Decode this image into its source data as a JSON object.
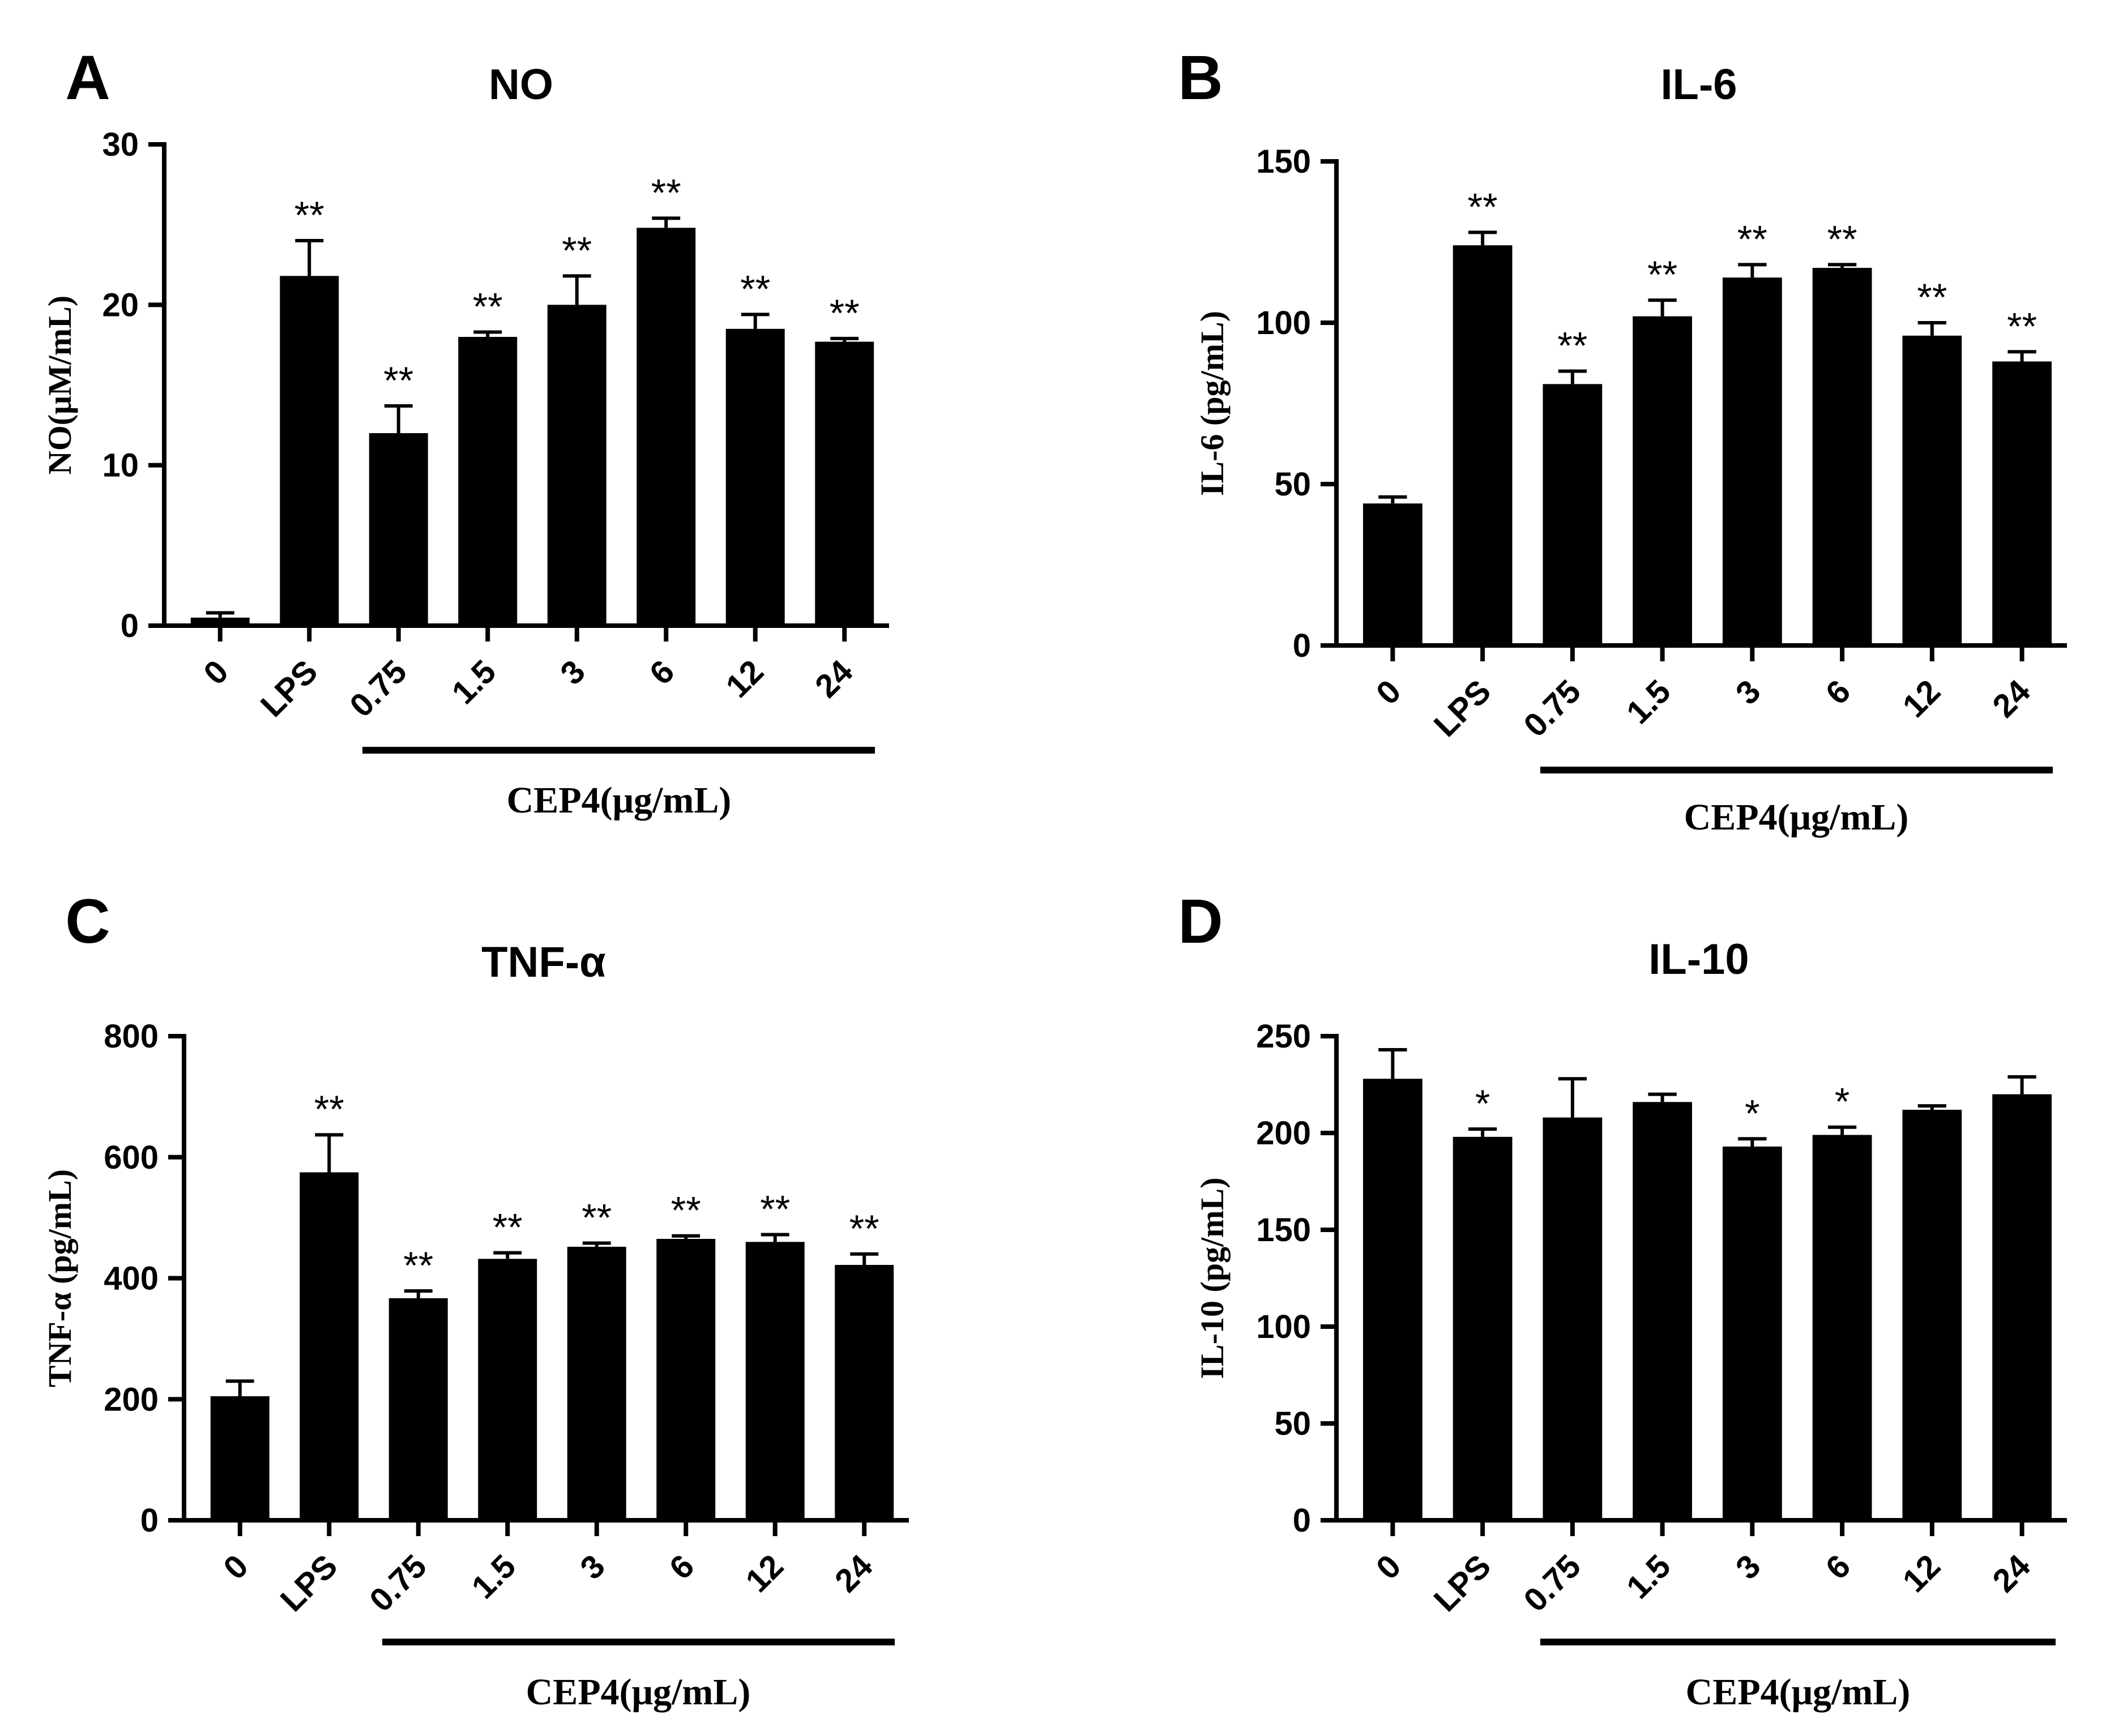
{
  "chart_data": [
    {
      "type": "bar",
      "panel": "A",
      "title": "NO",
      "ylabel": "NO(μM/mL)",
      "group_label": "CEP4(μg/mL)",
      "categories": [
        "0",
        "LPS",
        "0.75",
        "1.5",
        "3",
        "6",
        "12",
        "24"
      ],
      "values": [
        0.5,
        21.8,
        12.0,
        18.0,
        20.0,
        24.8,
        18.5,
        17.7
      ],
      "errors": [
        0.3,
        2.2,
        1.7,
        0.3,
        1.8,
        0.6,
        0.9,
        0.2
      ],
      "significance": [
        "",
        "**",
        "**",
        "**",
        "**",
        "**",
        "**",
        "**"
      ],
      "ylim": [
        0,
        30
      ],
      "yticks": [
        0,
        10,
        20,
        30
      ],
      "color": "#000000"
    },
    {
      "type": "bar",
      "panel": "B",
      "title": "IL-6",
      "ylabel": "IL-6 (pg/mL)",
      "group_label": "CEP4(μg/mL)",
      "categories": [
        "0",
        "LPS",
        "0.75",
        "1.5",
        "3",
        "6",
        "12",
        "24"
      ],
      "values": [
        44,
        124,
        81,
        102,
        114,
        117,
        96,
        88
      ],
      "errors": [
        2,
        4,
        4,
        5,
        4,
        1,
        4,
        3
      ],
      "significance": [
        "",
        "**",
        "**",
        "**",
        "**",
        "**",
        "**",
        "**"
      ],
      "ylim": [
        0,
        150
      ],
      "yticks": [
        0,
        50,
        100,
        150
      ],
      "color": "#000000"
    },
    {
      "type": "bar",
      "panel": "C",
      "title": "TNF-α",
      "ylabel": "TNF-α (pg/mL)",
      "group_label": "CEP4(μg/mL)",
      "categories": [
        "0",
        "LPS",
        "0.75",
        "1.5",
        "3",
        "6",
        "12",
        "24"
      ],
      "values": [
        205,
        575,
        367,
        432,
        452,
        465,
        460,
        422
      ],
      "errors": [
        25,
        62,
        12,
        10,
        6,
        5,
        12,
        18
      ],
      "significance": [
        "",
        "**",
        "**",
        "**",
        "**",
        "**",
        "**",
        "**"
      ],
      "ylim": [
        0,
        800
      ],
      "yticks": [
        0,
        200,
        400,
        600,
        800
      ],
      "color": "#000000"
    },
    {
      "type": "bar",
      "panel": "D",
      "title": "IL-10",
      "ylabel": "IL-10 (pg/mL)",
      "group_label": "CEP4(μg/mL)",
      "categories": [
        "0",
        "LPS",
        "0.75",
        "1.5",
        "3",
        "6",
        "12",
        "24"
      ],
      "values": [
        228,
        198,
        208,
        216,
        193,
        199,
        212,
        220
      ],
      "errors": [
        15,
        4,
        20,
        4,
        4,
        4,
        2,
        9
      ],
      "significance": [
        "",
        "*",
        "",
        "",
        "*",
        "*",
        "",
        ""
      ],
      "ylim": [
        0,
        250
      ],
      "yticks": [
        0,
        50,
        100,
        150,
        200,
        250
      ],
      "color": "#000000"
    }
  ]
}
